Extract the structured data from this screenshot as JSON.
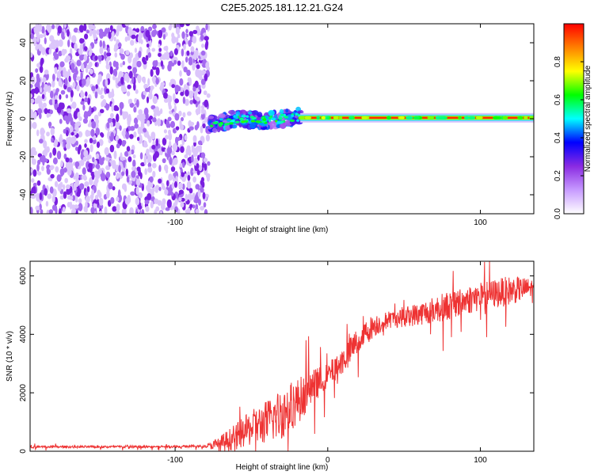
{
  "figure_title": "C2E5.2025.181.12.21.G24",
  "chart_data": [
    {
      "type": "heatmap",
      "panel": "top",
      "title": "C2E5.2025.181.12.21.G24",
      "xlabel": "Height of straight line (km)",
      "ylabel": "Frequency (Hz)",
      "xlim": [
        -195,
        135
      ],
      "ylim": [
        -50,
        50
      ],
      "x_ticks": [
        -100,
        0,
        100
      ],
      "x_tick_labels": [
        "-100",
        "",
        "100"
      ],
      "y_ticks": [
        -40,
        -20,
        0,
        20,
        40
      ],
      "y_tick_labels": [
        "-40",
        "-20",
        "0",
        "20",
        "40"
      ],
      "colorbar": {
        "label": "Normalized spectral amplitude",
        "range": [
          0,
          1
        ],
        "ticks": [
          0,
          0.2,
          0.4,
          0.6,
          0.8
        ],
        "tick_labels": [
          "0.0",
          "0.2",
          "0.4",
          "0.6",
          "0.8"
        ],
        "colors": [
          "#ffffff",
          "#c79bff",
          "#8a2be2",
          "#0000ff",
          "#00ffff",
          "#00ff00",
          "#ffff00",
          "#ff8000",
          "#ff0000"
        ]
      },
      "regions": [
        {
          "name": "noise",
          "x_range": [
            -195,
            -78
          ],
          "freq_range": [
            -50,
            50
          ],
          "amplitude": 0.1
        },
        {
          "name": "emerging-signal",
          "x_range": [
            -78,
            -18
          ],
          "center_freq": [
            [
              -78,
              -3
            ],
            [
              -60,
              0
            ],
            [
              -40,
              -1
            ],
            [
              -20,
              1
            ]
          ],
          "amplitude": 0.4
        },
        {
          "name": "tracked-tone",
          "x_range": [
            -18,
            135
          ],
          "center_freq": 0.5,
          "amplitude": 0.95
        }
      ]
    },
    {
      "type": "line",
      "panel": "bottom",
      "xlabel": "Height of straight line (km)",
      "ylabel": "SNR (10 * v/v)",
      "xlim": [
        -195,
        135
      ],
      "ylim": [
        0,
        6500
      ],
      "x_ticks": [
        -100,
        0,
        100
      ],
      "x_tick_labels": [
        "-100",
        "0",
        "100"
      ],
      "y_ticks": [
        0,
        2000,
        4000,
        6000
      ],
      "y_tick_labels": [
        "0",
        "2000",
        "4000",
        "6000"
      ],
      "color": "#ee3333",
      "trend": {
        "x": [
          -195,
          -150,
          -100,
          -80,
          -70,
          -60,
          -50,
          -40,
          -30,
          -20,
          -10,
          0,
          10,
          20,
          30,
          40,
          60,
          80,
          100,
          120,
          135
        ],
        "y": [
          150,
          150,
          160,
          170,
          250,
          500,
          800,
          1000,
          1300,
          1700,
          2200,
          2600,
          3100,
          3800,
          4300,
          4500,
          4700,
          5000,
          5300,
          5500,
          5600
        ]
      },
      "noise_amplitude": {
        "x": [
          -195,
          -80,
          -70,
          -50,
          -30,
          -20,
          0,
          20,
          40,
          80,
          120,
          135
        ],
        "y": [
          40,
          40,
          300,
          600,
          900,
          800,
          400,
          500,
          300,
          500,
          500,
          300
        ]
      }
    }
  ]
}
